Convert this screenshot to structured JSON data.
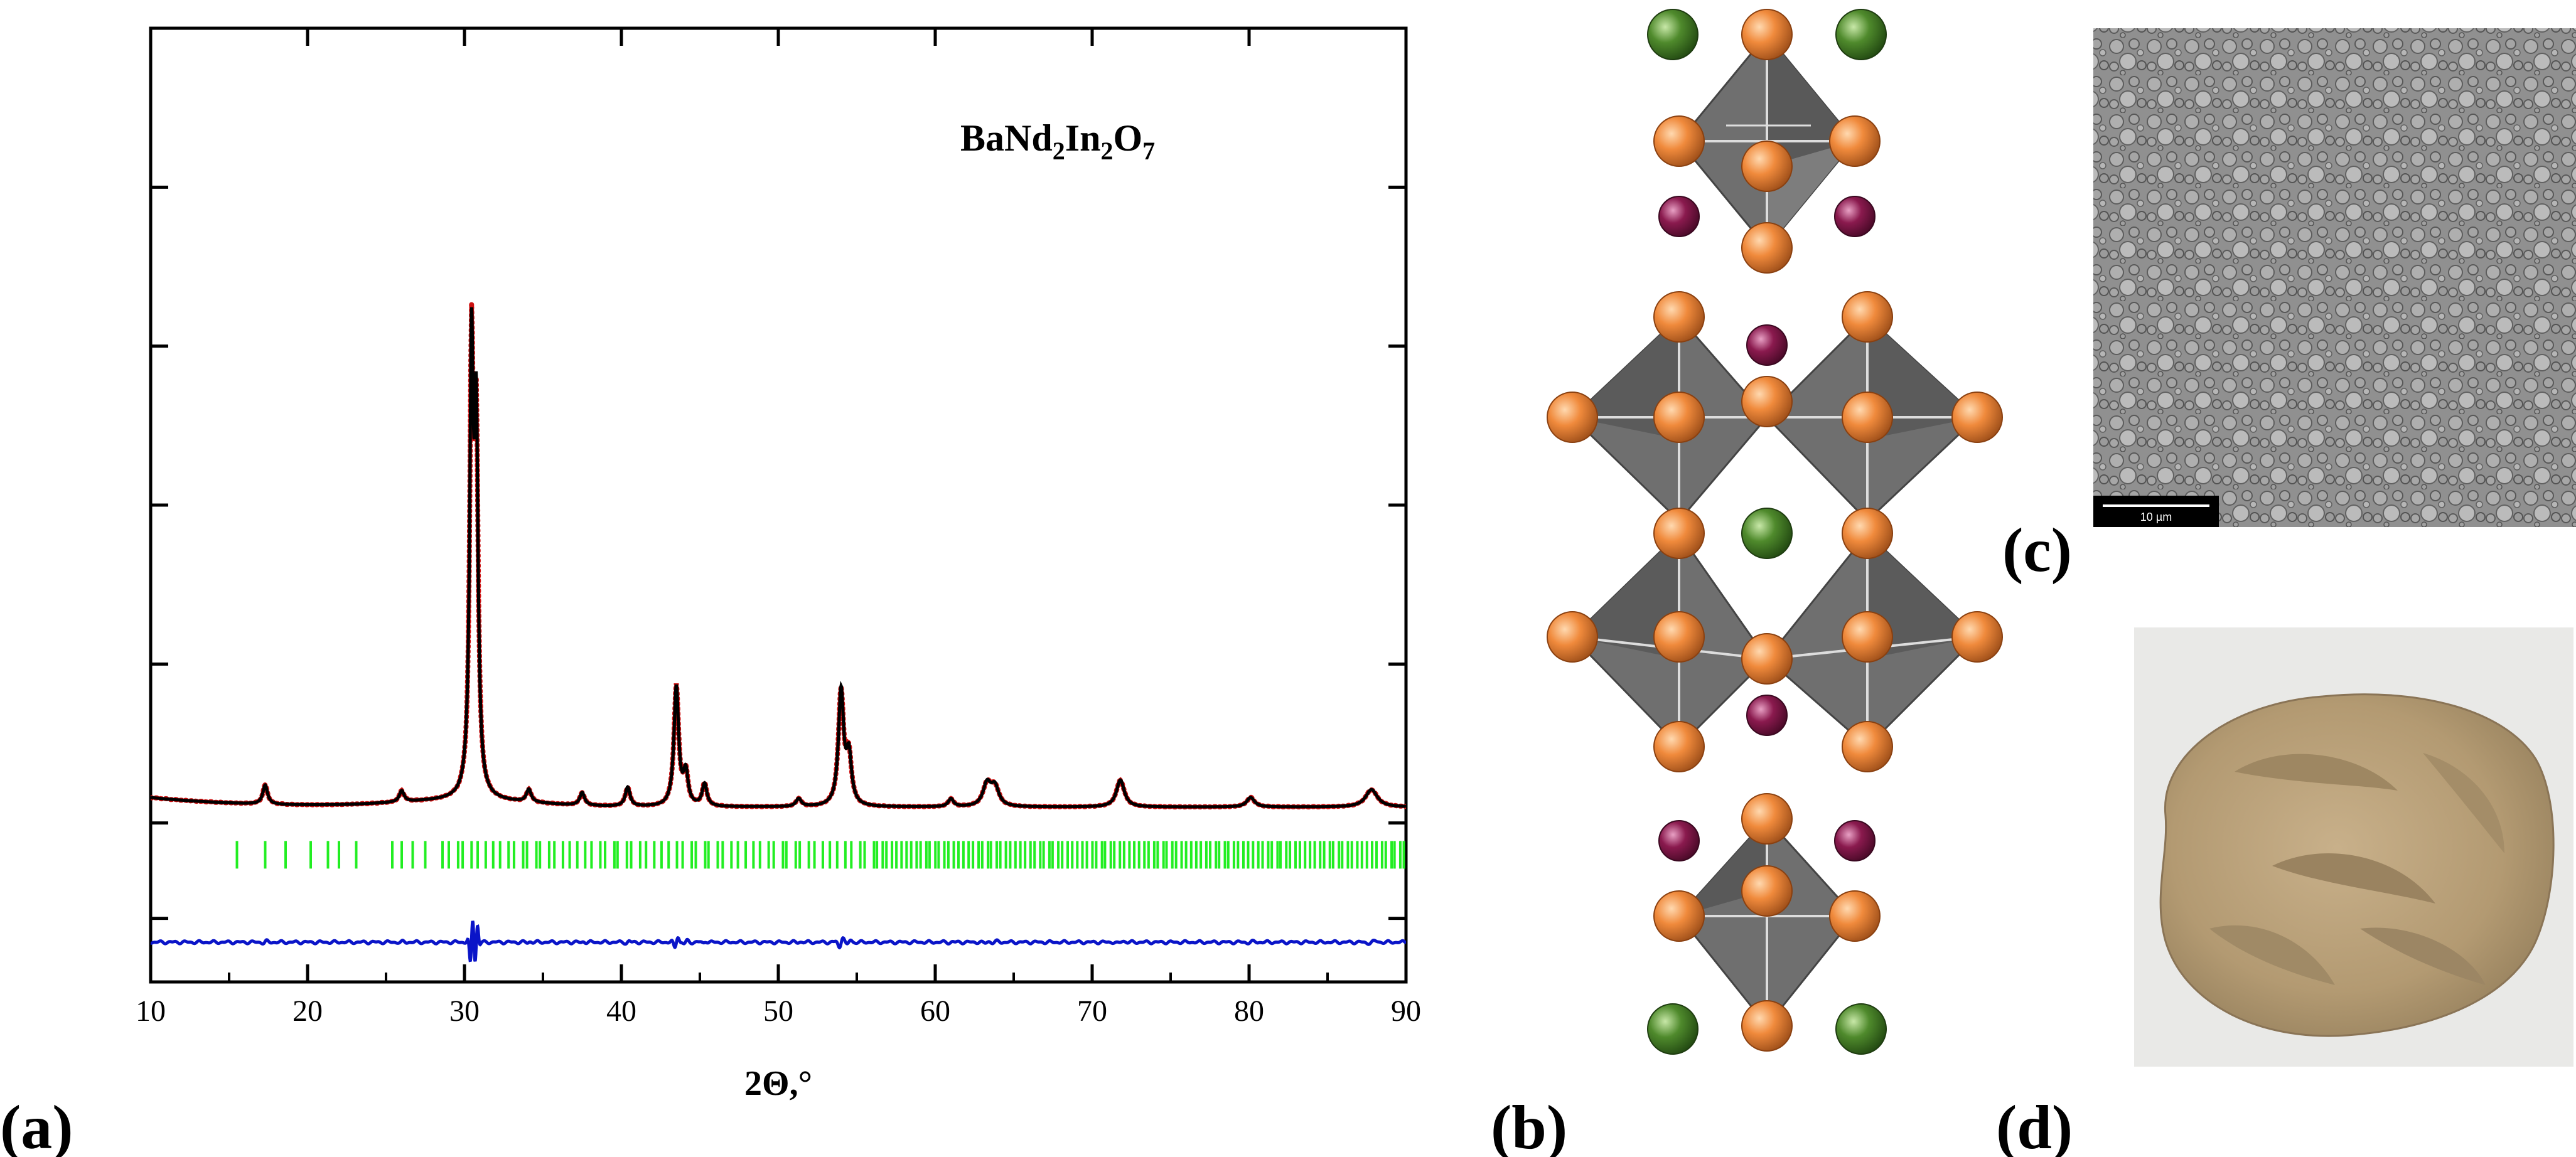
{
  "panels": {
    "a_label": "(a)",
    "b_label": "(b)",
    "c_label": "(c)",
    "d_label": "(d)"
  },
  "chart_data": {
    "type": "line",
    "title": "BaNd2In2O7",
    "title_parts": [
      "BaNd",
      "2",
      "In",
      "2",
      "O",
      "7"
    ],
    "xlabel": "2Θ,°",
    "ylabel": "",
    "xlim": [
      10,
      90
    ],
    "ylim": [
      -1.0,
      5.0
    ],
    "xticks": [
      10,
      20,
      30,
      40,
      50,
      60,
      70,
      80,
      90
    ],
    "yticks_unlabeled": [
      -0.6,
      0.0,
      1.0,
      2.0,
      3.0,
      4.0
    ],
    "background_level": 0.1,
    "peaks": [
      {
        "pos": 17.3,
        "height": 0.12,
        "width": 0.18
      },
      {
        "pos": 26.0,
        "height": 0.07,
        "width": 0.18
      },
      {
        "pos": 30.45,
        "height": 2.7,
        "width": 0.14
      },
      {
        "pos": 30.75,
        "height": 2.2,
        "width": 0.14
      },
      {
        "pos": 34.1,
        "height": 0.08,
        "width": 0.18
      },
      {
        "pos": 37.5,
        "height": 0.08,
        "width": 0.18
      },
      {
        "pos": 40.4,
        "height": 0.12,
        "width": 0.18
      },
      {
        "pos": 43.5,
        "height": 0.75,
        "width": 0.18
      },
      {
        "pos": 44.1,
        "height": 0.2,
        "width": 0.18
      },
      {
        "pos": 45.3,
        "height": 0.14,
        "width": 0.18
      },
      {
        "pos": 51.3,
        "height": 0.05,
        "width": 0.2
      },
      {
        "pos": 54.0,
        "height": 0.72,
        "width": 0.2
      },
      {
        "pos": 54.5,
        "height": 0.3,
        "width": 0.2
      },
      {
        "pos": 61.0,
        "height": 0.05,
        "width": 0.2
      },
      {
        "pos": 63.3,
        "height": 0.14,
        "width": 0.3
      },
      {
        "pos": 63.8,
        "height": 0.12,
        "width": 0.3
      },
      {
        "pos": 71.8,
        "height": 0.17,
        "width": 0.3
      },
      {
        "pos": 80.1,
        "height": 0.06,
        "width": 0.3
      },
      {
        "pos": 87.8,
        "height": 0.11,
        "width": 0.45
      }
    ],
    "series": [
      {
        "name": "observed",
        "color": "#cc1111",
        "style": "dots"
      },
      {
        "name": "calculated",
        "color": "#000000",
        "style": "line"
      },
      {
        "name": "Bragg positions",
        "color": "#22ee22",
        "style": "ticks",
        "y": -0.2
      },
      {
        "name": "difference",
        "color": "#0a14c8",
        "style": "line",
        "offset": -0.75
      }
    ],
    "bragg_range": [
      15.5,
      90
    ],
    "bragg_sparse_positions": [
      15.5,
      17.3,
      18.6,
      20.2,
      21.3,
      22.0,
      23.1,
      25.4,
      26.0,
      26.7,
      27.5,
      28.6
    ]
  },
  "structure": {
    "description_colors": {
      "polyhedron": "#6f6f6f",
      "oxygen": "#e8823a",
      "barium": "#4f8a2c",
      "neodymium": "#8a1a4e"
    }
  },
  "micrograph": {
    "scale_text": "10 µm"
  },
  "photo": {
    "powder_color": "#b79f78",
    "background_color": "#e9e9e7"
  }
}
